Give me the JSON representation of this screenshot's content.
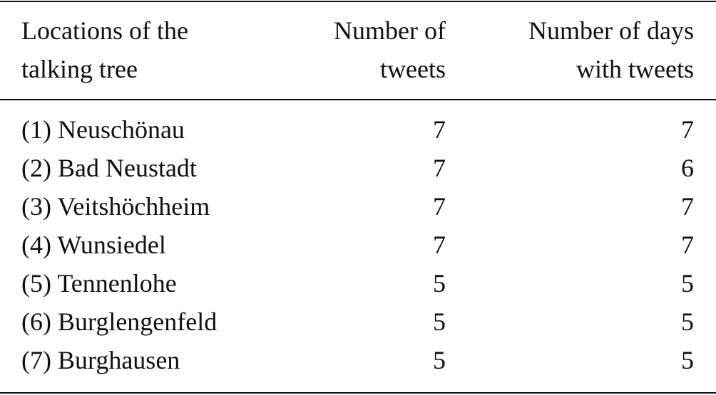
{
  "table": {
    "headers": [
      [
        "Locations of the",
        "talking tree"
      ],
      [
        "Number of",
        "tweets"
      ],
      [
        "Number of days",
        "with tweets"
      ]
    ],
    "rows": [
      {
        "location": "(1) Neuschönau",
        "tweets": "7",
        "days": "7"
      },
      {
        "location": "(2) Bad Neustadt",
        "tweets": "7",
        "days": "6"
      },
      {
        "location": "(3) Veitshöchheim",
        "tweets": "7",
        "days": "7"
      },
      {
        "location": "(4) Wunsiedel",
        "tweets": "7",
        "days": "7"
      },
      {
        "location": "(5) Tennenlohe",
        "tweets": "5",
        "days": "5"
      },
      {
        "location": "(6) Burglengenfeld",
        "tweets": "5",
        "days": "5"
      },
      {
        "location": "(7) Burghausen",
        "tweets": "5",
        "days": "5"
      }
    ]
  }
}
